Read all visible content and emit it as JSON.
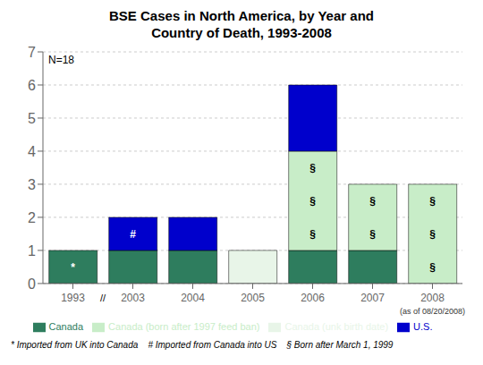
{
  "chart_data": {
    "type": "bar",
    "title": "BSE Cases in North America, by Year and\nCountry of Death, 1993-2008",
    "categories": [
      "1993",
      "2003",
      "2004",
      "2005",
      "2006",
      "2007",
      "2008"
    ],
    "series": [
      {
        "name": "Canada",
        "color": "#2e7d5e",
        "values": [
          1,
          1,
          1,
          0,
          1,
          1,
          0
        ]
      },
      {
        "name": "Canada (born after 1997 feed ban)",
        "color": "#c8edc8",
        "values": [
          0,
          0,
          0,
          0,
          3,
          2,
          3
        ]
      },
      {
        "name": "Canada (unk birth date)",
        "color": "#e8f5e8",
        "values": [
          0,
          0,
          0,
          1,
          0,
          0,
          0
        ]
      },
      {
        "name": "U.S.",
        "color": "#0000cc",
        "values": [
          0,
          1,
          1,
          0,
          2,
          0,
          0
        ]
      }
    ],
    "stacked": true,
    "ylim": [
      0,
      7
    ],
    "yticks": [
      0,
      1,
      2,
      3,
      4,
      5,
      6,
      7
    ],
    "grid": true,
    "legend": "bottom",
    "annotations": [
      {
        "text": "N=18"
      },
      {
        "text": "//",
        "between": [
          "1993",
          "2003"
        ]
      },
      {
        "text": "(as of 08/20/2008)",
        "below": "2008"
      },
      {
        "text": "*",
        "x": "1993",
        "y": 0.5
      },
      {
        "text": "#",
        "x": "2003",
        "y": 1.5
      },
      {
        "text": "§",
        "x": "2006",
        "y": 1.5
      },
      {
        "text": "§",
        "x": "2006",
        "y": 2.5
      },
      {
        "text": "§",
        "x": "2006",
        "y": 3.5
      },
      {
        "text": "§",
        "x": "2007",
        "y": 1.5
      },
      {
        "text": "§",
        "x": "2007",
        "y": 2.5
      },
      {
        "text": "§",
        "x": "2008",
        "y": 0.5
      },
      {
        "text": "§",
        "x": "2008",
        "y": 1.5
      },
      {
        "text": "§",
        "x": "2008",
        "y": 2.5
      }
    ],
    "footnote": "* Imported from UK into Canada    # Imported from Canada into US    § Born after March 1, 1999"
  }
}
